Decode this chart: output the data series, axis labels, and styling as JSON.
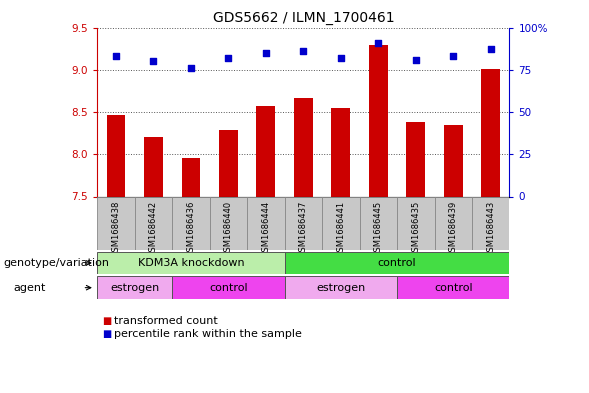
{
  "title": "GDS5662 / ILMN_1700461",
  "samples": [
    "GSM1686438",
    "GSM1686442",
    "GSM1686436",
    "GSM1686440",
    "GSM1686444",
    "GSM1686437",
    "GSM1686441",
    "GSM1686445",
    "GSM1686435",
    "GSM1686439",
    "GSM1686443"
  ],
  "transformed_counts": [
    8.46,
    8.21,
    7.96,
    8.29,
    8.57,
    8.66,
    8.55,
    9.29,
    8.38,
    8.35,
    9.01
  ],
  "percentile_ranks": [
    83,
    80,
    76,
    82,
    85,
    86,
    82,
    91,
    81,
    83,
    87
  ],
  "y_min": 7.5,
  "y_max": 9.5,
  "y_ticks": [
    7.5,
    8.0,
    8.5,
    9.0,
    9.5
  ],
  "y2_ticks": [
    0,
    25,
    50,
    75,
    100
  ],
  "bar_color": "#cc0000",
  "dot_color": "#0000cc",
  "bar_width": 0.5,
  "grid_color": "#555555",
  "bg_color": "#ffffff",
  "genotype_groups": [
    {
      "label": "KDM3A knockdown",
      "start": 0,
      "end": 5,
      "color": "#bbeeaa"
    },
    {
      "label": "control",
      "start": 5,
      "end": 11,
      "color": "#44dd44"
    }
  ],
  "agent_groups": [
    {
      "label": "estrogen",
      "start": 0,
      "end": 2,
      "color": "#f0aaee"
    },
    {
      "label": "control",
      "start": 2,
      "end": 5,
      "color": "#ee44ee"
    },
    {
      "label": "estrogen",
      "start": 5,
      "end": 8,
      "color": "#f0aaee"
    },
    {
      "label": "control",
      "start": 8,
      "end": 11,
      "color": "#ee44ee"
    }
  ],
  "xlabel_genotype": "genotype/variation",
  "xlabel_agent": "agent",
  "legend_items": [
    {
      "label": "transformed count",
      "color": "#cc0000"
    },
    {
      "label": "percentile rank within the sample",
      "color": "#0000cc"
    }
  ],
  "title_fontsize": 10,
  "tick_fontsize": 7.5,
  "label_fontsize": 8,
  "sample_fontsize": 6,
  "sample_box_color": "#c8c8c8",
  "sample_box_edge": "#888888"
}
